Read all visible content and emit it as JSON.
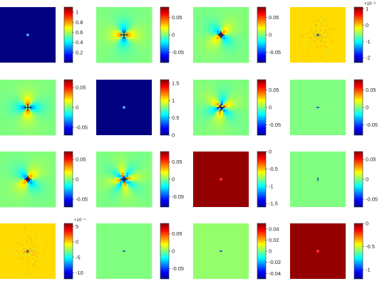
{
  "chart_data": {
    "type": "heatmap",
    "layout": {
      "rows": 4,
      "cols": 4
    },
    "colormap": "jet",
    "panels": [
      {
        "pattern": "uniform",
        "uniform": 0.0,
        "feature": "dot-blue",
        "cbar": {
          "min": 0,
          "max": 1.1,
          "ticks": [
            {
              "v": 0.2,
              "label": "0.2"
            },
            {
              "v": 0.4,
              "label": "0.4"
            },
            {
              "v": 0.6,
              "label": "0.6"
            },
            {
              "v": 0.8,
              "label": "0.8"
            },
            {
              "v": 1,
              "label": "1"
            }
          ]
        }
      },
      {
        "pattern": "lobes",
        "lobes": 2,
        "rot": 0,
        "amp": 0.9,
        "feature": "cross",
        "cbar": {
          "min": -0.08,
          "max": 0.08,
          "ticks": [
            {
              "v": 0.05,
              "label": "0.05"
            },
            {
              "v": 0,
              "label": "0"
            },
            {
              "v": -0.05,
              "label": "-0.05"
            }
          ]
        }
      },
      {
        "pattern": "lobes",
        "lobes": 2,
        "rot": 45,
        "amp": 0.8,
        "feature": "cross",
        "cbar": {
          "min": -0.08,
          "max": 0.08,
          "ticks": [
            {
              "v": 0.05,
              "label": "0.05"
            },
            {
              "v": 0,
              "label": "0"
            },
            {
              "v": -0.05,
              "label": "-0.05"
            }
          ]
        }
      },
      {
        "pattern": "noisy",
        "uniform": 0.66,
        "feature": "noise",
        "cbar": {
          "min": -2.3,
          "max": 1.1,
          "exponent": "×10⁻⁸",
          "ticks": [
            {
              "v": 1,
              "label": "1"
            },
            {
              "v": 0,
              "label": "0"
            },
            {
              "v": -1,
              "label": "-1"
            },
            {
              "v": -2,
              "label": "-2"
            }
          ]
        }
      },
      {
        "pattern": "lobes",
        "lobes": 2,
        "rot": 90,
        "amp": 0.9,
        "feature": "cross",
        "cbar": {
          "min": -0.07,
          "max": 0.07,
          "ticks": [
            {
              "v": 0.05,
              "label": "0.05"
            },
            {
              "v": 0,
              "label": "0"
            },
            {
              "v": -0.05,
              "label": "-0.05"
            }
          ]
        }
      },
      {
        "pattern": "uniform",
        "uniform": 0.0,
        "feature": "dot-blue",
        "cbar": {
          "min": 0,
          "max": 1.6,
          "ticks": [
            {
              "v": 0,
              "label": "0"
            },
            {
              "v": 0.5,
              "label": "0.5"
            },
            {
              "v": 1,
              "label": "1"
            },
            {
              "v": 1.5,
              "label": "1.5"
            }
          ]
        }
      },
      {
        "pattern": "lobes",
        "lobes": 3,
        "rot": 20,
        "amp": 0.9,
        "feature": "cross",
        "cbar": {
          "min": -0.08,
          "max": 0.08,
          "ticks": [
            {
              "v": 0.05,
              "label": "0.05"
            },
            {
              "v": 0,
              "label": "0"
            },
            {
              "v": -0.05,
              "label": "-0.05"
            }
          ]
        }
      },
      {
        "pattern": "uniform",
        "uniform": 0.5,
        "feature": "dash",
        "cbar": {
          "min": -0.08,
          "max": 0.08,
          "ticks": [
            {
              "v": 0.05,
              "label": "0.05"
            },
            {
              "v": 0,
              "label": "0"
            },
            {
              "v": -0.05,
              "label": "-0.05"
            }
          ]
        }
      },
      {
        "pattern": "lobes",
        "lobes": 2,
        "rot": 45,
        "amp": 0.85,
        "feature": "cross",
        "cbar": {
          "min": -0.07,
          "max": 0.07,
          "ticks": [
            {
              "v": 0.05,
              "label": "0.05"
            },
            {
              "v": 0,
              "label": "0"
            },
            {
              "v": -0.05,
              "label": "-0.05"
            }
          ]
        }
      },
      {
        "pattern": "lobes",
        "lobes": 4,
        "rot": 10,
        "amp": 0.9,
        "feature": "cross",
        "cbar": {
          "min": -0.08,
          "max": 0.08,
          "ticks": [
            {
              "v": 0.05,
              "label": "0.05"
            },
            {
              "v": 0,
              "label": "0"
            },
            {
              "v": -0.05,
              "label": "-0.05"
            }
          ]
        }
      },
      {
        "pattern": "uniform",
        "uniform": 0.98,
        "feature": "dot-red",
        "cbar": {
          "min": -1.6,
          "max": 0,
          "ticks": [
            {
              "v": 0,
              "label": "0"
            },
            {
              "v": -0.5,
              "label": "-0.5"
            },
            {
              "v": -1,
              "label": "-1"
            },
            {
              "v": -1.5,
              "label": "-1.5"
            }
          ]
        }
      },
      {
        "pattern": "uniform",
        "uniform": 0.5,
        "feature": "dash-v",
        "cbar": {
          "min": -0.07,
          "max": 0.07,
          "ticks": [
            {
              "v": 0.05,
              "label": "0.05"
            },
            {
              "v": 0,
              "label": "0"
            },
            {
              "v": -0.05,
              "label": "-0.05"
            }
          ]
        }
      },
      {
        "pattern": "noisy",
        "uniform": 0.66,
        "feature": "noise",
        "cbar": {
          "min": -12,
          "max": 6,
          "exponent": "×10⁻⁴",
          "ticks": [
            {
              "v": 5,
              "label": "5"
            },
            {
              "v": 0,
              "label": "0"
            },
            {
              "v": -5,
              "label": "-5"
            },
            {
              "v": -10,
              "label": "-10"
            }
          ]
        }
      },
      {
        "pattern": "uniform",
        "uniform": 0.5,
        "feature": "dash",
        "cbar": {
          "min": -0.08,
          "max": 0.08,
          "ticks": [
            {
              "v": 0.05,
              "label": "0.05"
            },
            {
              "v": 0,
              "label": "0"
            },
            {
              "v": -0.05,
              "label": "-0.05"
            }
          ]
        }
      },
      {
        "pattern": "uniform",
        "uniform": 0.52,
        "feature": "dash-h",
        "cbar": {
          "min": -0.05,
          "max": 0.05,
          "ticks": [
            {
              "v": 0.04,
              "label": "0.04"
            },
            {
              "v": 0.02,
              "label": "0.02"
            },
            {
              "v": 0,
              "label": "0"
            },
            {
              "v": -0.02,
              "label": "-0.02"
            },
            {
              "v": -0.04,
              "label": "-0.04"
            }
          ]
        }
      },
      {
        "pattern": "uniform",
        "uniform": 0.98,
        "feature": "dot-red",
        "cbar": {
          "min": -1.2,
          "max": 0,
          "ticks": [
            {
              "v": 0,
              "label": "0"
            },
            {
              "v": -0.5,
              "label": "-0.5"
            },
            {
              "v": -1,
              "label": "-1"
            }
          ]
        }
      }
    ]
  }
}
